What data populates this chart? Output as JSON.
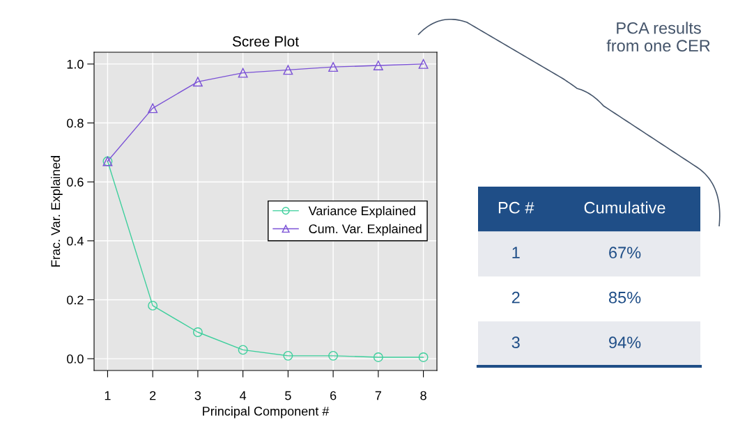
{
  "chart_data": [
    {
      "type": "line",
      "title": "Scree Plot",
      "xlabel": "Principal Component #",
      "ylabel": "Frac. Var. Explained",
      "x": [
        1,
        2,
        3,
        4,
        5,
        6,
        7,
        8
      ],
      "series": [
        {
          "name": "Variance Explained",
          "color": "#3dcf9c",
          "marker": "circle",
          "values": [
            0.67,
            0.18,
            0.09,
            0.03,
            0.01,
            0.01,
            0.005,
            0.005
          ]
        },
        {
          "name": "Cum. Var. Explained",
          "color": "#7b52d6",
          "marker": "triangle",
          "values": [
            0.67,
            0.85,
            0.94,
            0.97,
            0.98,
            0.99,
            0.995,
            1.0
          ]
        }
      ],
      "xlim": [
        0.7,
        8.3
      ],
      "ylim": [
        -0.04,
        1.04
      ],
      "xticks": [
        1,
        2,
        3,
        4,
        5,
        6,
        7,
        8
      ],
      "yticks": [
        {
          "value": 0,
          "label": "0.0"
        },
        0.2,
        0.4,
        0.6,
        0.8,
        {
          "value": 1,
          "label": "1.0"
        }
      ],
      "grid": true,
      "legend": "right"
    },
    {
      "type": "other",
      "title": "PCA results\nfrom one CER",
      "categories": [
        "PC #",
        "Cumulative"
      ],
      "annotations": [
        "1",
        "67%",
        "2",
        "85%",
        "3",
        "94%"
      ],
      "color": "#1f4e87"
    }
  ]
}
